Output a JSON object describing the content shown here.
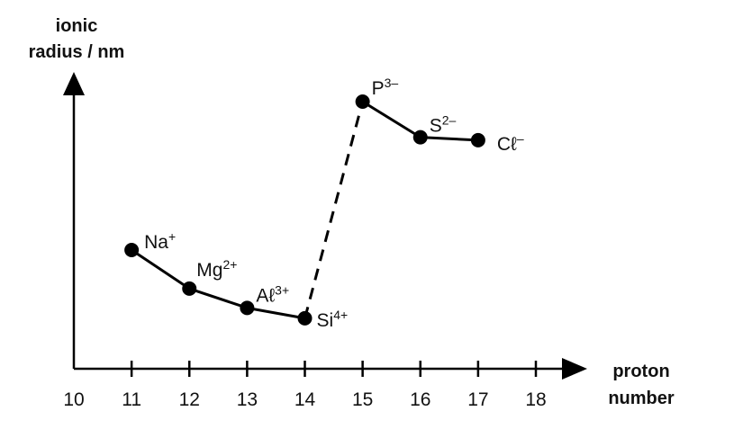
{
  "chart_data": {
    "type": "line",
    "ylabel_lines": [
      "ionic",
      "radius / nm"
    ],
    "xlabel_lines": [
      "proton",
      "number"
    ],
    "x_ticks": [
      "10",
      "11",
      "12",
      "13",
      "14",
      "15",
      "16",
      "17",
      "18"
    ],
    "xlim": [
      10,
      18
    ],
    "y_ticks_shown": false,
    "ylim": [
      0,
      1
    ],
    "points": [
      {
        "x": 11,
        "y": 0.4,
        "ion": "Na",
        "charge": "+",
        "segment": 1
      },
      {
        "x": 12,
        "y": 0.27,
        "ion": "Mg",
        "charge": "2+",
        "segment": 1
      },
      {
        "x": 13,
        "y": 0.205,
        "ion": "Aℓ",
        "charge": "3+",
        "segment": 1
      },
      {
        "x": 14,
        "y": 0.17,
        "ion": "Si",
        "charge": "4+",
        "segment": 1
      },
      {
        "x": 15,
        "y": 0.9,
        "ion": "P",
        "charge": "3–",
        "segment": 2
      },
      {
        "x": 16,
        "y": 0.78,
        "ion": "S",
        "charge": "2–",
        "segment": 2
      },
      {
        "x": 17,
        "y": 0.77,
        "ion": "Cℓ",
        "charge": "–",
        "segment": 2
      }
    ],
    "connectors": [
      {
        "from_x": 14,
        "to_x": 15,
        "style": "dashed"
      }
    ],
    "line_color": "#000000",
    "marker_color": "#000000",
    "legend": "none",
    "grid": false
  }
}
